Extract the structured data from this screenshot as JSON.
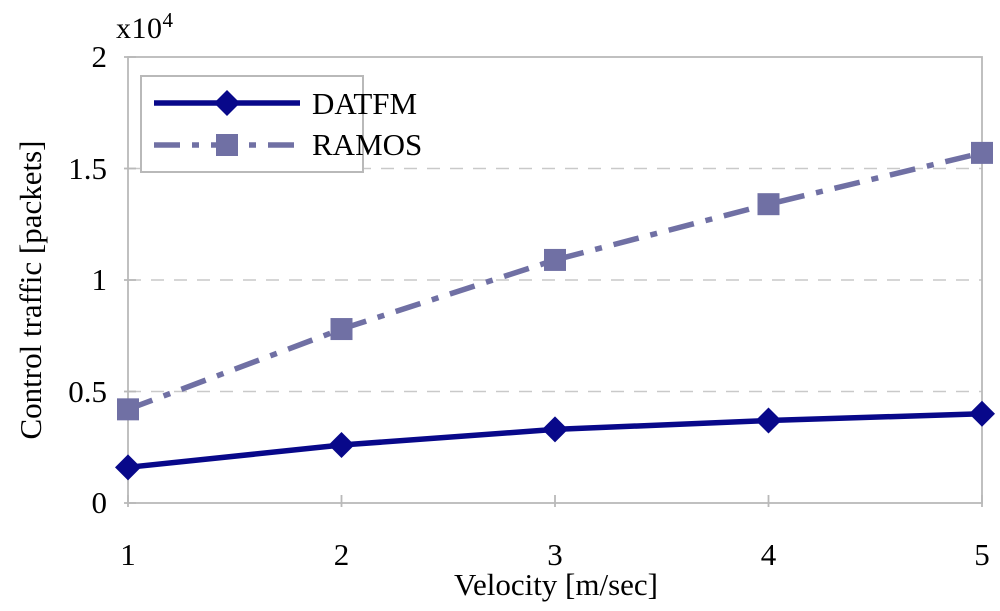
{
  "chart_data": {
    "type": "line",
    "title": "",
    "xlabel": "Velocity [m/sec]",
    "ylabel": "Control traffic [packets]",
    "y_scale_label": "x10",
    "y_scale_exponent": "4",
    "x": [
      1,
      2,
      3,
      4,
      5
    ],
    "x_tick_labels": [
      "1",
      "2",
      "3",
      "4",
      "5"
    ],
    "y_tick_values": [
      0,
      5000,
      10000,
      15000,
      20000
    ],
    "y_tick_labels": [
      "0",
      "0.5",
      "1",
      "1.5",
      "2"
    ],
    "xlim": [
      1,
      5
    ],
    "ylim": [
      0,
      20000
    ],
    "grid": "horizontal dashed gridlines at interior y ticks",
    "legend_position": "top-left",
    "series": [
      {
        "name": "DATFM",
        "values": [
          1600,
          2600,
          3300,
          3700,
          4000
        ],
        "color": "#08088A",
        "line_style": "solid",
        "marker": "diamond"
      },
      {
        "name": "RAMOS",
        "values": [
          4200,
          7800,
          10900,
          13400,
          15700
        ],
        "color": "#7070A4",
        "line_style": "dash-dot",
        "marker": "square"
      }
    ],
    "frame_color": "#b9b9b9",
    "grid_color": "#c9c9c9",
    "text_color": "#000000",
    "background_color": "#ffffff"
  }
}
